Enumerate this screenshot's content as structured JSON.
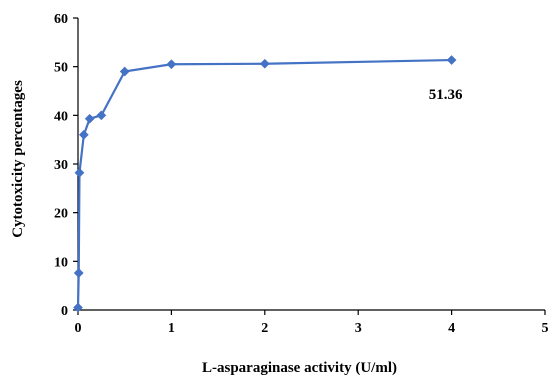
{
  "chart_data": {
    "type": "line",
    "title": "",
    "xlabel": "L-asparaginase activity (U/ml)",
    "ylabel": "Cytotoxicity percentages",
    "xlim": [
      0,
      5
    ],
    "ylim": [
      0,
      60
    ],
    "xticks": [
      "0",
      "1",
      "2",
      "3",
      "4",
      "5"
    ],
    "yticks": [
      "0",
      "10",
      "20",
      "30",
      "40",
      "50",
      "60"
    ],
    "grid": false,
    "legend": "none",
    "series": [
      {
        "color": "#4472C4",
        "marker": "diamond",
        "x": [
          0.0,
          0.0078,
          0.0156,
          0.0625,
          0.125,
          0.25,
          0.5,
          1.0,
          2.0,
          4.0
        ],
        "y": [
          0.5,
          7.6,
          28.2,
          36.0,
          39.3,
          40.0,
          49.0,
          50.5,
          50.6,
          51.36
        ]
      }
    ],
    "annotations": [
      {
        "text": "51.36",
        "x": 4.0,
        "y": 51.36
      }
    ]
  }
}
